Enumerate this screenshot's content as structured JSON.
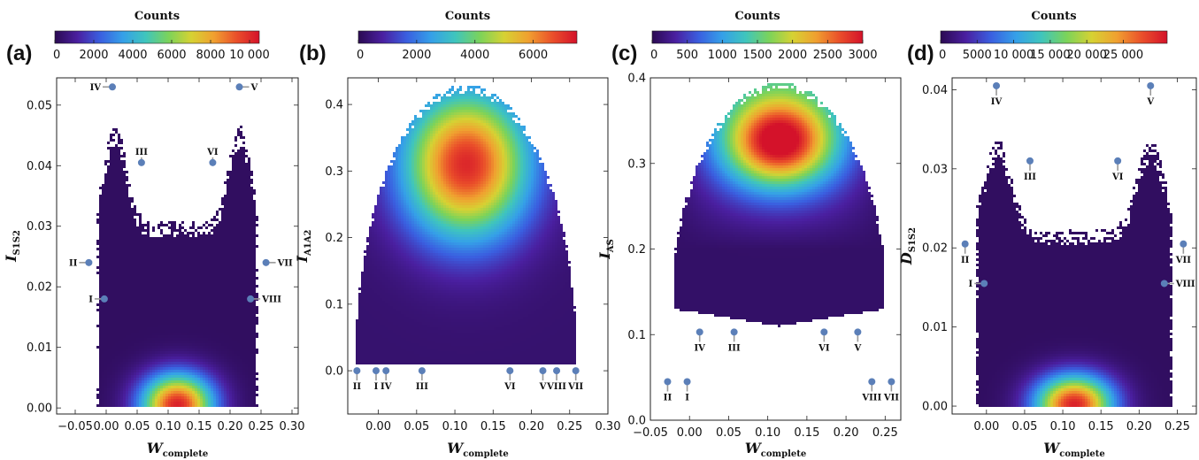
{
  "colors": {
    "colormap": [
      "#2b0a52",
      "#4a1fa0",
      "#3a5fe0",
      "#35a0e8",
      "#3fc5bd",
      "#7bd35a",
      "#d6d233",
      "#f0a030",
      "#ea4f2a",
      "#d4122a"
    ],
    "marker": "#5b7fb8",
    "leader": "#999999",
    "background": "#ffffff"
  },
  "chart_data": [
    {
      "type": "heatmap",
      "panel_label": "(a)",
      "colorbar": {
        "title": "Counts",
        "range": [
          0,
          10500
        ],
        "ticks": [
          0,
          2000,
          4000,
          6000,
          8000,
          10000
        ],
        "tick_labels": [
          "0",
          "2000",
          "4000",
          "6000",
          "8000",
          "10 000"
        ]
      },
      "xlabel": "W",
      "xlabel_sub": "complete",
      "ylabel": "I",
      "ylabel_sub": "S1S2",
      "xlim": [
        -0.08,
        0.31
      ],
      "ylim": [
        -0.001,
        0.0545
      ],
      "xticks": [
        -0.05,
        0.0,
        0.05,
        0.1,
        0.15,
        0.2,
        0.25,
        0.3
      ],
      "xtick_labels": [
        "−0.05",
        "0.00",
        "0.05",
        "0.10",
        "0.15",
        "0.20",
        "0.25",
        "0.30"
      ],
      "yticks": [
        0.0,
        0.01,
        0.02,
        0.03,
        0.04,
        0.05
      ],
      "ytick_labels": [
        "0.00",
        "0.01",
        "0.02",
        "0.03",
        "0.04",
        "0.05"
      ],
      "density": {
        "shape": "bottom-peak",
        "x_center": 0.115,
        "x_spread": 0.04,
        "y_min": 0.0,
        "y_max": 0.047,
        "peak_y": 0.0005
      },
      "markers": [
        {
          "label": "I",
          "x": -0.003,
          "y": 0.018,
          "side": "left"
        },
        {
          "label": "II",
          "x": -0.028,
          "y": 0.024,
          "side": "left"
        },
        {
          "label": "III",
          "x": 0.057,
          "y": 0.0405,
          "side": "up"
        },
        {
          "label": "IV",
          "x": 0.01,
          "y": 0.053,
          "side": "left"
        },
        {
          "label": "V",
          "x": 0.215,
          "y": 0.053,
          "side": "right"
        },
        {
          "label": "VI",
          "x": 0.172,
          "y": 0.0405,
          "side": "up"
        },
        {
          "label": "VII",
          "x": 0.258,
          "y": 0.024,
          "side": "right"
        },
        {
          "label": "VIII",
          "x": 0.233,
          "y": 0.018,
          "side": "right"
        }
      ]
    },
    {
      "type": "heatmap",
      "panel_label": "(b)",
      "colorbar": {
        "title": "Counts",
        "range": [
          0,
          7500
        ],
        "ticks": [
          0,
          2000,
          4000,
          6000
        ],
        "tick_labels": [
          "0",
          "2000",
          "4000",
          "6000"
        ]
      },
      "xlabel": "W",
      "xlabel_sub": "complete",
      "ylabel": "I",
      "ylabel_sub": "A1A2",
      "xlim": [
        -0.04,
        0.3
      ],
      "ylim": [
        -0.065,
        0.44
      ],
      "xticks": [
        0.0,
        0.05,
        0.1,
        0.15,
        0.2,
        0.25,
        0.3
      ],
      "xtick_labels": [
        "0.00",
        "0.05",
        "0.10",
        "0.15",
        "0.20",
        "0.25",
        "0.30"
      ],
      "yticks": [
        0.0,
        0.1,
        0.2,
        0.3,
        0.4
      ],
      "ytick_labels": [
        "0.0",
        "0.1",
        "0.2",
        "0.3",
        "0.4"
      ],
      "density": {
        "shape": "dome-peak",
        "x_center": 0.115,
        "x_half_width": 0.145,
        "y_min": 0.01,
        "y_max": 0.43,
        "peak_y": 0.31
      },
      "markers": [
        {
          "label": "II",
          "x": -0.028,
          "y": 0.0,
          "side": "down"
        },
        {
          "label": "I",
          "x": -0.003,
          "y": 0.0,
          "side": "down"
        },
        {
          "label": "IV",
          "x": 0.01,
          "y": 0.0,
          "side": "down"
        },
        {
          "label": "III",
          "x": 0.057,
          "y": 0.0,
          "side": "down"
        },
        {
          "label": "VI",
          "x": 0.172,
          "y": 0.0,
          "side": "down"
        },
        {
          "label": "V",
          "x": 0.215,
          "y": 0.0,
          "side": "down"
        },
        {
          "label": "VIII",
          "x": 0.233,
          "y": 0.0,
          "side": "down"
        },
        {
          "label": "VII",
          "x": 0.258,
          "y": 0.0,
          "side": "down"
        }
      ]
    },
    {
      "type": "heatmap",
      "panel_label": "(c)",
      "colorbar": {
        "title": "Counts",
        "range": [
          0,
          3000
        ],
        "ticks": [
          0,
          500,
          1000,
          1500,
          2000,
          2500,
          3000
        ],
        "tick_labels": [
          "0",
          "500",
          "1000",
          "1500",
          "2000",
          "2500",
          "3000"
        ]
      },
      "xlabel": "W",
      "xlabel_sub": "complete",
      "ylabel": "I",
      "ylabel_sub": "AS",
      "xlim": [
        -0.05,
        0.27
      ],
      "ylim": [
        0.0,
        0.4
      ],
      "xticks": [
        -0.05,
        0.0,
        0.05,
        0.1,
        0.15,
        0.2,
        0.25
      ],
      "xtick_labels": [
        "−0.05",
        "0.00",
        "0.05",
        "0.10",
        "0.15",
        "0.20",
        "0.25"
      ],
      "yticks": [
        0.0,
        0.1,
        0.2,
        0.3,
        0.4
      ],
      "ytick_labels": [
        "0.0",
        "0.1",
        "0.2",
        "0.3",
        "0.4"
      ],
      "density": {
        "shape": "dome-ridge",
        "x_center": 0.115,
        "x_half_width": 0.135,
        "y_min": 0.11,
        "y_max": 0.395,
        "peak_y": 0.325
      },
      "markers": [
        {
          "label": "II",
          "x": -0.028,
          "y": 0.045,
          "side": "down"
        },
        {
          "label": "I",
          "x": -0.003,
          "y": 0.045,
          "side": "down"
        },
        {
          "label": "IV",
          "x": 0.013,
          "y": 0.103,
          "side": "down"
        },
        {
          "label": "III",
          "x": 0.057,
          "y": 0.103,
          "side": "down"
        },
        {
          "label": "VI",
          "x": 0.172,
          "y": 0.103,
          "side": "down"
        },
        {
          "label": "V",
          "x": 0.215,
          "y": 0.103,
          "side": "down"
        },
        {
          "label": "VIII",
          "x": 0.233,
          "y": 0.045,
          "side": "down"
        },
        {
          "label": "VII",
          "x": 0.258,
          "y": 0.045,
          "side": "down"
        }
      ]
    },
    {
      "type": "heatmap",
      "panel_label": "(d)",
      "colorbar": {
        "title": "Counts",
        "range": [
          0,
          31000
        ],
        "ticks": [
          0,
          5000,
          10000,
          15000,
          20000,
          25000
        ],
        "tick_labels": [
          "0",
          "5000",
          "10 000",
          "15 000",
          "20 000",
          "25 000"
        ]
      },
      "xlabel": "W",
      "xlabel_sub": "complete",
      "ylabel": "D",
      "ylabel_sub": "S1S2",
      "xlim": [
        -0.045,
        0.275
      ],
      "ylim": [
        -0.001,
        0.0415
      ],
      "xticks": [
        0.0,
        0.05,
        0.1,
        0.15,
        0.2,
        0.25
      ],
      "xtick_labels": [
        "0.00",
        "0.05",
        "0.10",
        "0.15",
        "0.20",
        "0.25"
      ],
      "yticks": [
        0.0,
        0.01,
        0.02,
        0.03,
        0.04
      ],
      "ytick_labels": [
        "0.00",
        "0.01",
        "0.02",
        "0.03",
        "0.04"
      ],
      "density": {
        "shape": "bottom-peak",
        "x_center": 0.115,
        "x_spread": 0.035,
        "y_min": 0.0,
        "y_max": 0.034,
        "peak_y": 0.0002
      },
      "markers": [
        {
          "label": "I",
          "x": -0.003,
          "y": 0.0155,
          "side": "left"
        },
        {
          "label": "II",
          "x": -0.028,
          "y": 0.0205,
          "side": "down"
        },
        {
          "label": "III",
          "x": 0.057,
          "y": 0.031,
          "side": "down"
        },
        {
          "label": "IV",
          "x": 0.013,
          "y": 0.0405,
          "side": "down"
        },
        {
          "label": "V",
          "x": 0.215,
          "y": 0.0405,
          "side": "down"
        },
        {
          "label": "VI",
          "x": 0.172,
          "y": 0.031,
          "side": "down"
        },
        {
          "label": "VII",
          "x": 0.258,
          "y": 0.0205,
          "side": "down"
        },
        {
          "label": "VIII",
          "x": 0.233,
          "y": 0.0155,
          "side": "right"
        }
      ]
    }
  ]
}
